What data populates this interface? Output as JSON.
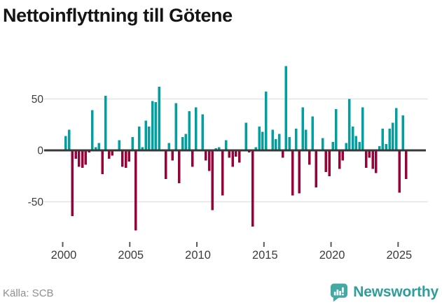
{
  "title": "Nettoinflyttning till Götene",
  "footer": {
    "source": "Källa: SCB",
    "brand": "Newsworthy"
  },
  "colors": {
    "positive": "#009fa0",
    "negative": "#970339",
    "grid": "#e4e4e4",
    "axis": "#383838",
    "tick": "#5a5a5a",
    "axis_text": "#3c3c3c",
    "title_text": "#151515",
    "source_text": "#8f8f8f",
    "brand_teal": "#2f9e9a",
    "logo_teal": "#43a9a2"
  },
  "chart_data": {
    "type": "bar",
    "title": "Nettoinflyttning till Götene",
    "xlabel": "",
    "ylabel": "",
    "frequency": "quarterly",
    "x_tick_labels": [
      2000,
      2005,
      2010,
      2015,
      2020,
      2025
    ],
    "y_tick_labels": [
      50,
      0,
      -50
    ],
    "ylim": [
      -88,
      95
    ],
    "grid": "horizontal lines at 50 and -50, dark zero axis",
    "legend": "none",
    "categories": [
      "2000Q1",
      "2000Q2",
      "2000Q3",
      "2000Q4",
      "2001Q1",
      "2001Q2",
      "2001Q3",
      "2001Q4",
      "2002Q1",
      "2002Q2",
      "2002Q3",
      "2002Q4",
      "2003Q1",
      "2003Q2",
      "2003Q3",
      "2003Q4",
      "2004Q1",
      "2004Q2",
      "2004Q3",
      "2004Q4",
      "2005Q1",
      "2005Q2",
      "2005Q3",
      "2005Q4",
      "2006Q1",
      "2006Q2",
      "2006Q3",
      "2006Q4",
      "2007Q1",
      "2007Q2",
      "2007Q3",
      "2007Q4",
      "2008Q1",
      "2008Q2",
      "2008Q3",
      "2008Q4",
      "2009Q1",
      "2009Q2",
      "2009Q3",
      "2009Q4",
      "2010Q1",
      "2010Q2",
      "2010Q3",
      "2010Q4",
      "2011Q1",
      "2011Q2",
      "2011Q3",
      "2011Q4",
      "2012Q1",
      "2012Q2",
      "2012Q3",
      "2012Q4",
      "2013Q1",
      "2013Q2",
      "2013Q3",
      "2013Q4",
      "2014Q1",
      "2014Q2",
      "2014Q3",
      "2014Q4",
      "2015Q1",
      "2015Q2",
      "2015Q3",
      "2015Q4",
      "2016Q1",
      "2016Q2",
      "2016Q3",
      "2016Q4",
      "2017Q1",
      "2017Q2",
      "2017Q3",
      "2017Q4",
      "2018Q1",
      "2018Q2",
      "2018Q3",
      "2018Q4",
      "2019Q1",
      "2019Q2",
      "2019Q3",
      "2019Q4",
      "2020Q1",
      "2020Q2",
      "2020Q3",
      "2020Q4",
      "2021Q1",
      "2021Q2",
      "2021Q3",
      "2021Q4",
      "2022Q1",
      "2022Q2",
      "2022Q3",
      "2022Q4",
      "2023Q1",
      "2023Q2",
      "2023Q3",
      "2023Q4",
      "2024Q1",
      "2024Q2",
      "2024Q3",
      "2024Q4",
      "2025Q1",
      "2025Q2",
      "2025Q3"
    ],
    "values": [
      14,
      20,
      -64,
      -8,
      -16,
      -17,
      -14,
      -2,
      39,
      3,
      7,
      -23,
      53,
      -8,
      -5,
      0,
      10,
      -16,
      -17,
      -11,
      13,
      -78,
      23,
      3,
      29,
      23,
      48,
      47,
      62,
      0,
      -28,
      7,
      -10,
      46,
      -32,
      13,
      16,
      38,
      -16,
      42,
      0,
      35,
      -10,
      -20,
      -58,
      2,
      3,
      -44,
      10,
      -7,
      -16,
      -6,
      -12,
      0,
      27,
      -2,
      -74,
      3,
      23,
      18,
      57,
      0,
      20,
      11,
      16,
      -7,
      82,
      13,
      -44,
      21,
      -42,
      42,
      20,
      -14,
      33,
      -36,
      0,
      12,
      -21,
      -25,
      8,
      40,
      -18,
      -10,
      7,
      50,
      23,
      14,
      8,
      42,
      -17,
      -7,
      -18,
      -22,
      4,
      21,
      6,
      21,
      27,
      41,
      -41,
      34,
      -28
    ]
  }
}
